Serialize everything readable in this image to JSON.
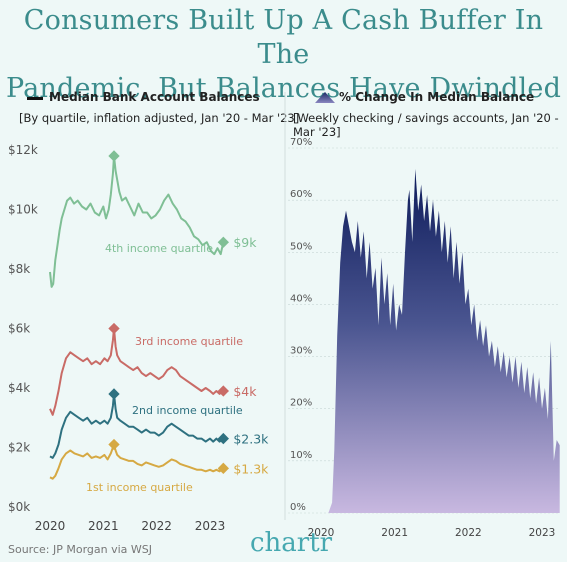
{
  "title_line1": "Consumers Built Up A Cash Buffer In The",
  "title_line2": "Pandemic, But Balances Have Dwindled",
  "left": {
    "legend_label": "Median Bank Account Balances",
    "subtitle": "[By quartile, inflation adjusted, Jan '20 - Mar '23]"
  },
  "right": {
    "legend_label": "% Change In Median Balance",
    "subtitle": "[Weekly checking / savings accounts, Jan '20 - Mar '23]"
  },
  "source": "Source: JP Morgan via WSJ",
  "brand": "chartr",
  "chart_data": [
    {
      "type": "line",
      "title": "Median Bank Account Balances",
      "xlabel": "",
      "ylabel": "",
      "x_ticks": [
        "2020",
        "2021",
        "2022",
        "2023"
      ],
      "y_ticks": [
        "$0k",
        "$2k",
        "$4k",
        "$6k",
        "$8k",
        "$10k",
        "$12k"
      ],
      "ylim": [
        0,
        12000
      ],
      "xlim": [
        2020.0,
        2023.3
      ],
      "series": [
        {
          "name": "4th income quartile",
          "end_label": "$9k",
          "color": "#7fbf95",
          "x": [
            2020.0,
            2020.03,
            2020.06,
            2020.1,
            2020.14,
            2020.18,
            2020.22,
            2020.27,
            2020.32,
            2020.38,
            2020.45,
            2020.52,
            2020.6,
            2020.68,
            2020.76,
            2020.84,
            2020.92,
            2021.0,
            2021.05,
            2021.1,
            2021.14,
            2021.18,
            2021.2,
            2021.23,
            2021.26,
            2021.3,
            2021.35,
            2021.42,
            2021.5,
            2021.58,
            2021.66,
            2021.74,
            2021.82,
            2021.9,
            2021.98,
            2022.06,
            2022.14,
            2022.22,
            2022.3,
            2022.38,
            2022.46,
            2022.54,
            2022.62,
            2022.7,
            2022.78,
            2022.86,
            2022.94,
            2023.02,
            2023.08,
            2023.14,
            2023.2,
            2023.25
          ],
          "values": [
            7900,
            7400,
            7500,
            8300,
            8800,
            9300,
            9700,
            10000,
            10300,
            10400,
            10200,
            10300,
            10100,
            10000,
            10200,
            9900,
            9800,
            10100,
            9700,
            10000,
            10500,
            11200,
            11800,
            11300,
            11000,
            10600,
            10300,
            10400,
            10100,
            9800,
            10200,
            9900,
            9900,
            9700,
            9800,
            10000,
            10300,
            10500,
            10200,
            10000,
            9700,
            9600,
            9400,
            9100,
            9000,
            8800,
            8900,
            8600,
            8500,
            8700,
            8500,
            8900
          ]
        },
        {
          "name": "3rd income quartile",
          "end_label": "$4k",
          "color": "#c96b66",
          "x": [
            2020.0,
            2020.05,
            2020.1,
            2020.16,
            2020.22,
            2020.3,
            2020.38,
            2020.46,
            2020.54,
            2020.62,
            2020.7,
            2020.78,
            2020.86,
            2020.94,
            2021.02,
            2021.08,
            2021.14,
            2021.18,
            2021.2,
            2021.23,
            2021.26,
            2021.32,
            2021.4,
            2021.48,
            2021.56,
            2021.64,
            2021.72,
            2021.8,
            2021.88,
            2021.96,
            2022.04,
            2022.12,
            2022.2,
            2022.28,
            2022.36,
            2022.44,
            2022.52,
            2022.6,
            2022.68,
            2022.76,
            2022.84,
            2022.92,
            2023.0,
            2023.06,
            2023.12,
            2023.18,
            2023.25
          ],
          "values": [
            3300,
            3100,
            3400,
            3900,
            4500,
            5000,
            5200,
            5100,
            5000,
            4900,
            5000,
            4800,
            4900,
            4800,
            5000,
            4900,
            5100,
            5600,
            6000,
            5400,
            5100,
            4900,
            4800,
            4700,
            4600,
            4700,
            4500,
            4400,
            4500,
            4400,
            4300,
            4400,
            4600,
            4700,
            4600,
            4400,
            4300,
            4200,
            4100,
            4000,
            3900,
            4000,
            3900,
            3800,
            3900,
            3800,
            3900
          ]
        },
        {
          "name": "2nd income quartile",
          "end_label": "$2.3k",
          "color": "#2e7180",
          "x": [
            2020.0,
            2020.05,
            2020.1,
            2020.16,
            2020.22,
            2020.3,
            2020.38,
            2020.46,
            2020.54,
            2020.62,
            2020.7,
            2020.78,
            2020.86,
            2020.94,
            2021.02,
            2021.08,
            2021.14,
            2021.18,
            2021.2,
            2021.23,
            2021.26,
            2021.32,
            2021.4,
            2021.48,
            2021.56,
            2021.64,
            2021.72,
            2021.8,
            2021.88,
            2021.96,
            2022.04,
            2022.12,
            2022.2,
            2022.28,
            2022.36,
            2022.44,
            2022.52,
            2022.6,
            2022.68,
            2022.76,
            2022.84,
            2022.92,
            2023.0,
            2023.06,
            2023.12,
            2023.18,
            2023.25
          ],
          "values": [
            1700,
            1650,
            1800,
            2100,
            2600,
            3000,
            3200,
            3100,
            3000,
            2900,
            3000,
            2800,
            2900,
            2800,
            2900,
            2800,
            3000,
            3400,
            3800,
            3300,
            3000,
            2900,
            2800,
            2700,
            2700,
            2600,
            2500,
            2600,
            2500,
            2500,
            2400,
            2500,
            2700,
            2800,
            2700,
            2600,
            2500,
            2400,
            2400,
            2300,
            2300,
            2200,
            2300,
            2200,
            2300,
            2200,
            2300
          ]
        },
        {
          "name": "1st income quartile",
          "end_label": "$1.3k",
          "color": "#d6a943",
          "x": [
            2020.0,
            2020.05,
            2020.1,
            2020.16,
            2020.22,
            2020.3,
            2020.38,
            2020.46,
            2020.54,
            2020.62,
            2020.7,
            2020.78,
            2020.86,
            2020.94,
            2021.02,
            2021.08,
            2021.14,
            2021.18,
            2021.2,
            2021.23,
            2021.26,
            2021.32,
            2021.4,
            2021.48,
            2021.56,
            2021.64,
            2021.72,
            2021.8,
            2021.88,
            2021.96,
            2022.04,
            2022.12,
            2022.2,
            2022.28,
            2022.36,
            2022.44,
            2022.52,
            2022.6,
            2022.68,
            2022.76,
            2022.84,
            2022.92,
            2023.0,
            2023.06,
            2023.12,
            2023.18,
            2023.25
          ],
          "values": [
            1000,
            950,
            1050,
            1300,
            1600,
            1800,
            1900,
            1800,
            1750,
            1700,
            1800,
            1650,
            1700,
            1650,
            1750,
            1600,
            1800,
            2000,
            2100,
            1900,
            1750,
            1650,
            1600,
            1550,
            1550,
            1450,
            1400,
            1500,
            1450,
            1400,
            1350,
            1400,
            1500,
            1600,
            1550,
            1450,
            1400,
            1350,
            1300,
            1250,
            1250,
            1200,
            1250,
            1200,
            1250,
            1200,
            1300
          ]
        }
      ]
    },
    {
      "type": "area",
      "title": "% Change In Median Balance",
      "xlabel": "",
      "ylabel": "",
      "x_ticks": [
        "2020",
        "2021",
        "2022",
        "2023"
      ],
      "y_ticks": [
        "0%",
        "10%",
        "20%",
        "30%",
        "40%",
        "50%",
        "60%",
        "70%"
      ],
      "ylim": [
        0,
        70
      ],
      "xlim": [
        2020.0,
        2023.3
      ],
      "series": [
        {
          "name": "% Change In Median Balance",
          "x": [
            2020.0,
            2020.1,
            2020.15,
            2020.18,
            2020.22,
            2020.26,
            2020.3,
            2020.34,
            2020.38,
            2020.42,
            2020.46,
            2020.5,
            2020.54,
            2020.58,
            2020.62,
            2020.66,
            2020.7,
            2020.74,
            2020.78,
            2020.82,
            2020.86,
            2020.9,
            2020.94,
            2020.98,
            2021.02,
            2021.06,
            2021.1,
            2021.14,
            2021.18,
            2021.2,
            2021.24,
            2021.28,
            2021.32,
            2021.36,
            2021.4,
            2021.44,
            2021.48,
            2021.52,
            2021.56,
            2021.6,
            2021.64,
            2021.68,
            2021.72,
            2021.76,
            2021.8,
            2021.84,
            2021.88,
            2021.92,
            2021.96,
            2022.0,
            2022.04,
            2022.08,
            2022.12,
            2022.16,
            2022.2,
            2022.24,
            2022.28,
            2022.32,
            2022.36,
            2022.4,
            2022.44,
            2022.48,
            2022.52,
            2022.56,
            2022.6,
            2022.64,
            2022.68,
            2022.72,
            2022.76,
            2022.8,
            2022.84,
            2022.88,
            2022.92,
            2022.96,
            2023.0,
            2023.04,
            2023.08,
            2023.12,
            2023.16,
            2023.2,
            2023.24
          ],
          "values": [
            0,
            0,
            2,
            12,
            34,
            48,
            55,
            58,
            55,
            52,
            50,
            56,
            49,
            54,
            45,
            52,
            43,
            47,
            36,
            49,
            40,
            46,
            36,
            44,
            35,
            40,
            38,
            50,
            60,
            62,
            52,
            66,
            58,
            63,
            56,
            61,
            54,
            60,
            53,
            58,
            50,
            56,
            48,
            55,
            45,
            52,
            44,
            50,
            40,
            43,
            36,
            40,
            33,
            37,
            32,
            36,
            30,
            33,
            28,
            32,
            27,
            31,
            26,
            30,
            25,
            30,
            24,
            29,
            23,
            28,
            22,
            27,
            21,
            26,
            20,
            24,
            18,
            33,
            10,
            14,
            13
          ]
        }
      ]
    }
  ]
}
